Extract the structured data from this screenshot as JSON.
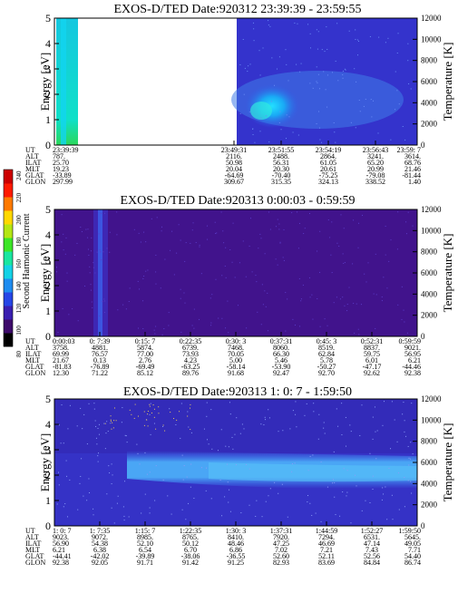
{
  "colorbar": {
    "title": "Second Harmonic Current",
    "ticks": [
      "80",
      "100",
      "120",
      "140",
      "160",
      "180",
      "200",
      "220",
      "240"
    ],
    "colors": [
      "#000000",
      "#3d0a6a",
      "#3a1fb0",
      "#2646e6",
      "#1e8cf0",
      "#14d2e6",
      "#19e6a0",
      "#3ce628",
      "#b4e614",
      "#ffd800",
      "#ff7a00",
      "#ff1a00",
      "#cc0000"
    ]
  },
  "panels": [
    {
      "title": "EXOS-D/TED   Date:920312  23:39:39 - 23:59:55",
      "ylabel": "Energy [eV]",
      "y2label": "Temperature [K]",
      "yticks": [
        "0",
        "1",
        "2",
        "3",
        "4",
        "5"
      ],
      "y2ticks": [
        "0",
        "2000",
        "4000",
        "6000",
        "8000",
        "10000",
        "12000"
      ],
      "rowlabels": [
        "UT",
        "ALT",
        "ILAT",
        "MLT",
        "GLAT",
        "GLON"
      ],
      "columns": [
        [
          "23:39:39",
          "787.",
          "25.70",
          "19.23",
          "-33.89",
          "297.99"
        ],
        [
          "23:49:31",
          "2116.",
          "50.98",
          "20.04",
          "-64.69",
          "309.67"
        ],
        [
          "23:51:55",
          "2488.",
          "56.31",
          "20.30",
          "-70.40",
          "315.35"
        ],
        [
          "23:54:19",
          "2864.",
          "61.05",
          "20.61",
          "-75.25",
          "324.13"
        ],
        [
          "23:56:43",
          "3241.",
          "65.20",
          "20.99",
          "-79.08",
          "338.52"
        ],
        [
          "23:59: 7",
          "3614.",
          "68.76",
          "21.46",
          "-81.44",
          "1.40"
        ]
      ]
    },
    {
      "title": "EXOS-D/TED   Date:920313  0:00:03 - 0:59:59",
      "ylabel": "Energy [eV]",
      "y2label": "Temperature [K]",
      "yticks": [
        "0",
        "1",
        "2",
        "3",
        "4",
        "5"
      ],
      "y2ticks": [
        "0",
        "2000",
        "4000",
        "6000",
        "8000",
        "10000",
        "12000"
      ],
      "rowlabels": [
        "UT",
        "ALT",
        "ILAT",
        "MLT",
        "GLAT",
        "GLON"
      ],
      "columns": [
        [
          "0:00:03",
          "3758.",
          "69.99",
          "21.67",
          "-81.83",
          "12.30"
        ],
        [
          "0: 7:39",
          "4881.",
          "76.57",
          "0.13",
          "-76.89",
          "71.22"
        ],
        [
          "0:15: 7",
          "5874.",
          "77.00",
          "2.76",
          "-69.49",
          "85.12"
        ],
        [
          "0:22:35",
          "6739.",
          "73.93",
          "4.23",
          "-63.25",
          "89.76"
        ],
        [
          "0:30: 3",
          "7468.",
          "70.05",
          "5.00",
          "-58.14",
          "91.68"
        ],
        [
          "0:37:31",
          "8060.",
          "66.30",
          "5.46",
          "-53.90",
          "92.47"
        ],
        [
          "0:45: 3",
          "8519.",
          "62.84",
          "5.78",
          "-50.27",
          "92.70"
        ],
        [
          "0:52:31",
          "8837.",
          "59.75",
          "6.01",
          "-47.17",
          "92.62"
        ],
        [
          "0:59:59",
          "9021.",
          "56.95",
          "6.21",
          "-44.46",
          "92.38"
        ]
      ]
    },
    {
      "title": "EXOS-D/TED   Date:920313  1: 0: 7 - 1:59:50",
      "ylabel": "Energy [eV]",
      "y2label": "Temperature [K]",
      "yticks": [
        "0",
        "1",
        "2",
        "3",
        "4",
        "5"
      ],
      "y2ticks": [
        "0",
        "2000",
        "4000",
        "6000",
        "8000",
        "10000",
        "12000"
      ],
      "rowlabels": [
        "UT",
        "ALT",
        "ILAT",
        "MLT",
        "GLAT",
        "GLON"
      ],
      "columns": [
        [
          "1: 0: 7",
          "9023.",
          "56.90",
          "6.21",
          "-44.41",
          "92.38"
        ],
        [
          "1: 7:35",
          "9072.",
          "54.38",
          "6.38",
          "-42.02",
          "92.05"
        ],
        [
          "1:15: 7",
          "8985.",
          "52.10",
          "6.54",
          "-39.89",
          "91.71"
        ],
        [
          "1:22:35",
          "8765.",
          "50.12",
          "6.70",
          "-38.06",
          "91.42"
        ],
        [
          "1:30: 3",
          "8410.",
          "48.46",
          "6.86",
          "-36.55",
          "91.25"
        ],
        [
          "1:37:31",
          "7920.",
          "47.25",
          "7.02",
          "52.60",
          "82.93"
        ],
        [
          "1:44:59",
          "7294.",
          "46.69",
          "7.21",
          "52.11",
          "83.69"
        ],
        [
          "1:52:27",
          "6531.",
          "47.14",
          "7.43",
          "52.56",
          "84.84"
        ],
        [
          "1:59:50",
          "5645.",
          "49.05",
          "7.71",
          "54.40",
          "86.74"
        ]
      ]
    }
  ],
  "chart_data": [
    {
      "type": "heatmap",
      "title": "EXOS-D/TED   Date:920312  23:39:39 - 23:59:55",
      "xlabel": "UT",
      "ylabel": "Energy [eV]",
      "y2label": "Temperature [K]",
      "ylim": [
        0,
        5
      ],
      "y2lim": [
        0,
        12000
      ],
      "x": [
        "23:39:39",
        "23:49:31",
        "23:51:55",
        "23:54:19",
        "23:56:43",
        "23:59: 7"
      ],
      "colorbar": {
        "title": "Second Harmonic Current",
        "range": [
          80,
          240
        ]
      },
      "features": [
        {
          "ut_range": [
            "23:39:39",
            "23:40:30"
          ],
          "energy_ev": [
            0,
            5
          ],
          "level": "cyan-green"
        },
        {
          "ut_range": [
            "23:40:30",
            "23:49:31"
          ],
          "energy_ev": [
            0,
            5
          ],
          "level": "no data"
        },
        {
          "ut_range": [
            "23:49:31",
            "23:59:55"
          ],
          "energy_ev": [
            0.8,
            2.0
          ],
          "level": "cyan core"
        },
        {
          "ut_range": [
            "23:49:31",
            "23:59:55"
          ],
          "energy_ev": [
            0,
            5
          ],
          "level": "blue background"
        }
      ]
    },
    {
      "type": "heatmap",
      "title": "EXOS-D/TED   Date:920313  0:00:03 - 0:59:59",
      "xlabel": "UT",
      "ylabel": "Energy [eV]",
      "y2label": "Temperature [K]",
      "ylim": [
        0,
        5
      ],
      "y2lim": [
        0,
        12000
      ],
      "x": [
        "0:00:03",
        "0: 7:39",
        "0:15: 7",
        "0:22:35",
        "0:30: 3",
        "0:37:31",
        "0:45: 3",
        "0:52:31",
        "0:59:59"
      ],
      "colorbar": {
        "title": "Second Harmonic Current",
        "range": [
          80,
          240
        ]
      },
      "features": [
        {
          "ut_range": [
            "0:00:03",
            "0:59:59"
          ],
          "energy_ev": [
            0,
            5
          ],
          "level": "dark blue background"
        },
        {
          "ut": "0: 7:39",
          "energy_ev": [
            0,
            5
          ],
          "level": "blue vertical stripe"
        }
      ]
    },
    {
      "type": "heatmap",
      "title": "EXOS-D/TED   Date:920313  1: 0: 7 - 1:59:50",
      "xlabel": "UT",
      "ylabel": "Energy [eV]",
      "y2label": "Temperature [K]",
      "ylim": [
        0,
        5
      ],
      "y2lim": [
        0,
        12000
      ],
      "x": [
        "1: 0: 7",
        "1: 7:35",
        "1:15: 7",
        "1:22:35",
        "1:30: 3",
        "1:37:31",
        "1:44:59",
        "1:52:27",
        "1:59:50"
      ],
      "colorbar": {
        "title": "Second Harmonic Current",
        "range": [
          80,
          240
        ]
      },
      "features": [
        {
          "ut_range": [
            "1:15: 7",
            "1:59:50"
          ],
          "energy_ev": [
            1.5,
            3.0
          ],
          "level": "light blue band"
        },
        {
          "ut_range": [
            "1: 0: 7",
            "1:59:50"
          ],
          "energy_ev": [
            0,
            5
          ],
          "level": "blue background"
        }
      ]
    }
  ]
}
